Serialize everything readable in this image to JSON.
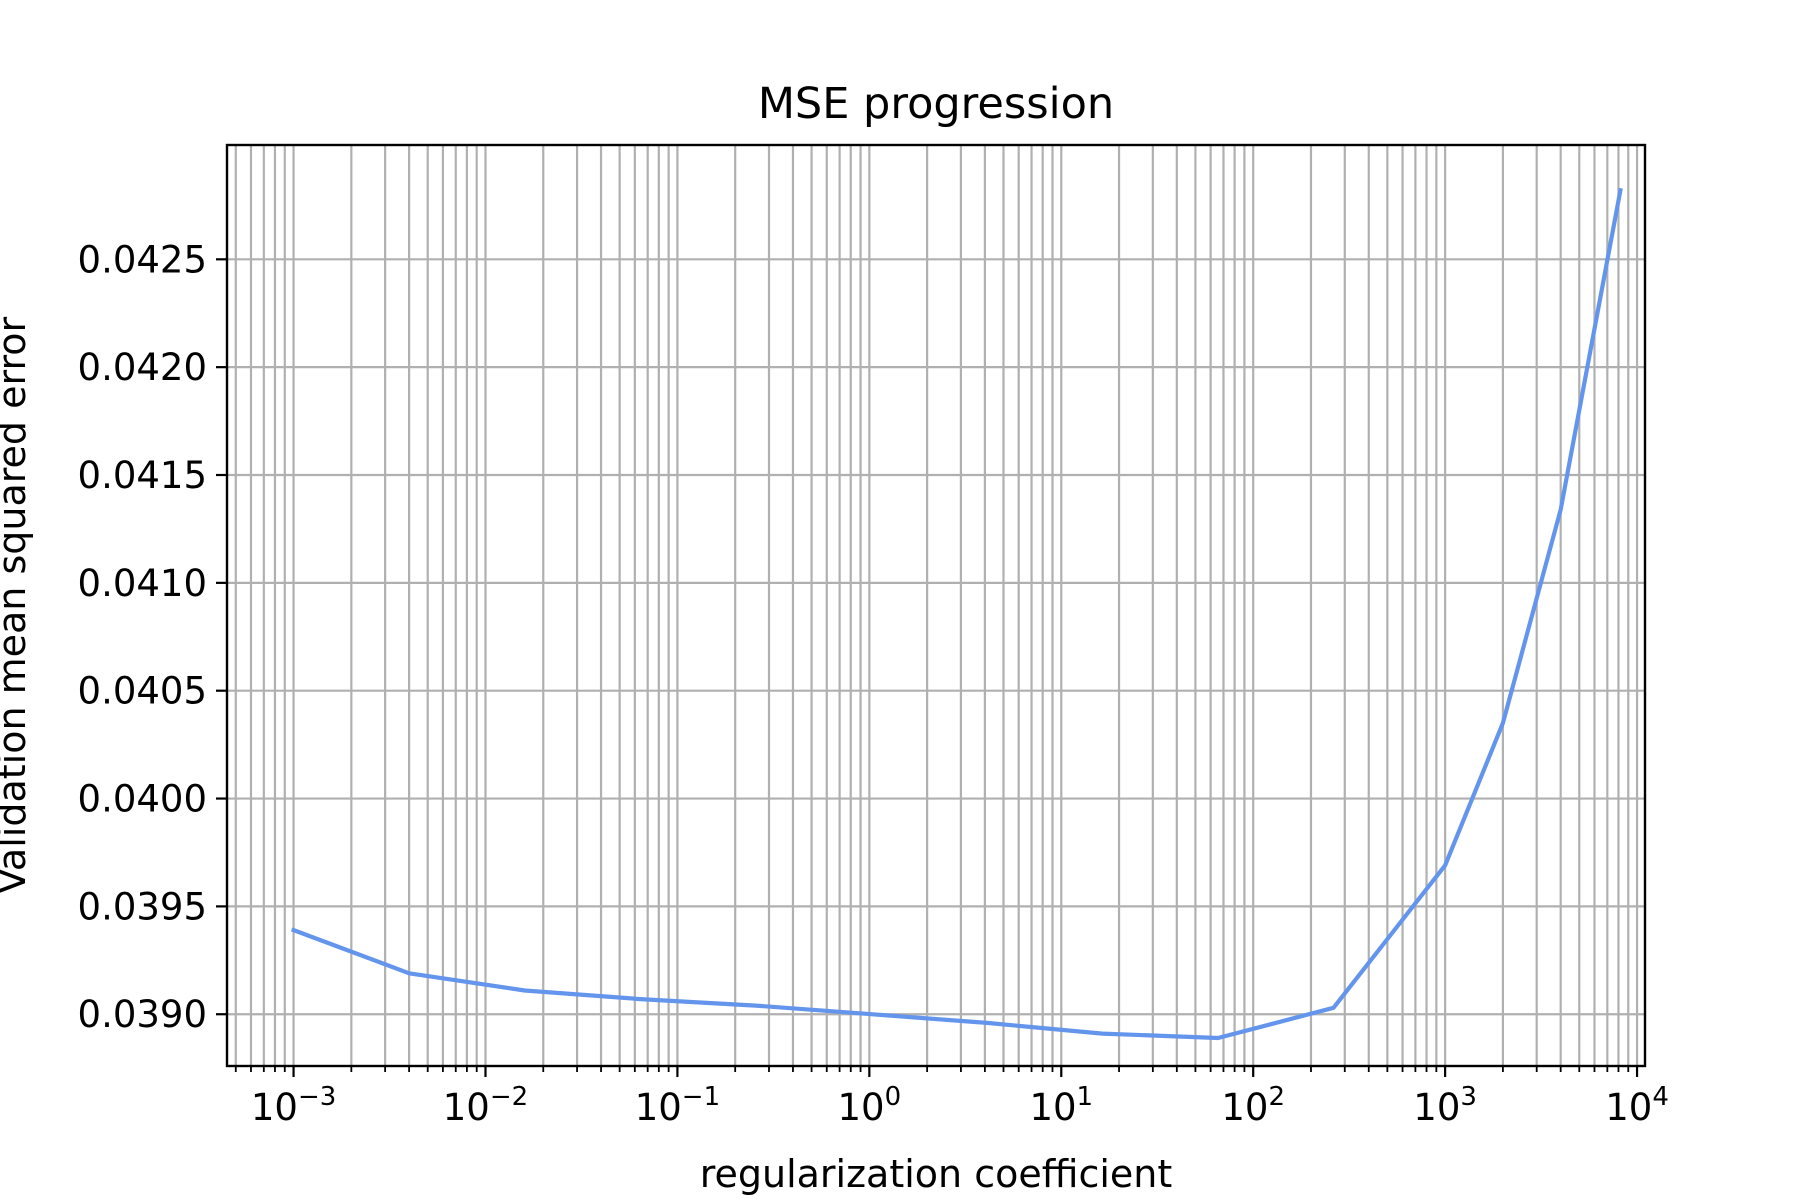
{
  "chart_data": {
    "type": "line",
    "title": "MSE progression",
    "xlabel": "regularization coefficient",
    "ylabel": "Validation mean squared error",
    "x_scale": "log",
    "xlim": [
      0.00045,
      11000
    ],
    "ylim": [
      0.03876,
      0.04303
    ],
    "grid": true,
    "grid_color": "#b0b0b0",
    "line_color": "#6495ed",
    "x_ticks": [
      {
        "value": 0.001,
        "base": "10",
        "exp": "−3"
      },
      {
        "value": 0.01,
        "base": "10",
        "exp": "−2"
      },
      {
        "value": 0.1,
        "base": "10",
        "exp": "−1"
      },
      {
        "value": 1,
        "base": "10",
        "exp": "0"
      },
      {
        "value": 10,
        "base": "10",
        "exp": "1"
      },
      {
        "value": 100,
        "base": "10",
        "exp": "2"
      },
      {
        "value": 1000,
        "base": "10",
        "exp": "3"
      },
      {
        "value": 10000,
        "base": "10",
        "exp": "4"
      }
    ],
    "y_ticks": [
      {
        "value": 0.039,
        "label": "0.0390"
      },
      {
        "value": 0.0395,
        "label": "0.0395"
      },
      {
        "value": 0.04,
        "label": "0.0400"
      },
      {
        "value": 0.0405,
        "label": "0.0405"
      },
      {
        "value": 0.041,
        "label": "0.0410"
      },
      {
        "value": 0.0415,
        "label": "0.0415"
      },
      {
        "value": 0.042,
        "label": "0.0420"
      },
      {
        "value": 0.0425,
        "label": "0.0425"
      }
    ],
    "series": [
      {
        "x": [
          0.001,
          0.004,
          0.016,
          0.064,
          0.256,
          1.024,
          4.096,
          16.384,
          65.536,
          262.144,
          1000,
          2000,
          4000,
          8192
        ],
        "y": [
          0.03939,
          0.03919,
          0.03911,
          0.03907,
          0.03904,
          0.039,
          0.03896,
          0.03891,
          0.03889,
          0.03903,
          0.03969,
          0.04035,
          0.04134,
          0.04282
        ]
      }
    ]
  }
}
